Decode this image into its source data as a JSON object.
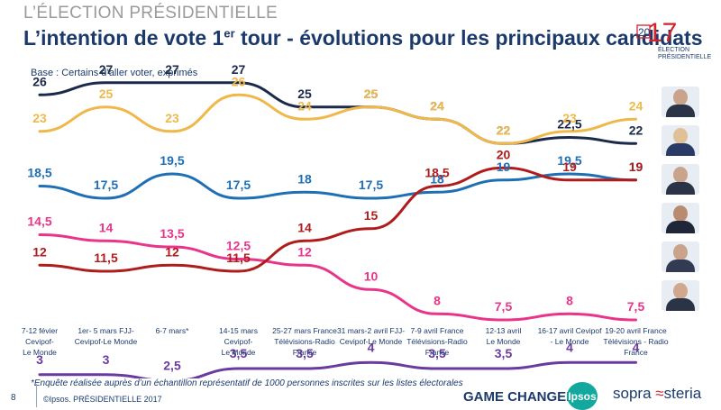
{
  "header": {
    "kicker": "L’ÉLECTION PRÉSIDENTIELLE",
    "title_main": "L’intention de vote 1",
    "title_sup": "er",
    "title_rest": " tour - évolutions pour les principaux candidats",
    "base": "Base : Certains d’aller voter, exprimés"
  },
  "logo": {
    "year_top": "20",
    "year_digits": "17",
    "line1": "ÉLECTION",
    "line2": "PRÉSIDENTIELLE"
  },
  "footer": {
    "note": "*Enquête réalisée auprès d’un échantillon représentatif de 1000 personnes inscrites sur les listes électorales",
    "page": "8",
    "source": "©Ipsos.  PRÉSIDENTIELLE 2017",
    "game_changers": "GAME CHANGERS",
    "ipsos": "Ipsos",
    "sopra_a": "sopra",
    "sopra_b": "steria"
  },
  "chart_data": {
    "type": "line",
    "ylim": [
      0,
      30
    ],
    "categories": [
      "7-12 févier Cevipof-Le Monde",
      "1er- 5 mars FJJ-Cevipof-Le Monde",
      "6-7 mars*",
      "14-15 mars Cevipof-Le Monde",
      "25-27 mars France Télévisions-Radio France",
      "31 mars-2 avril FJJ-Cevipof-Le Monde",
      "7-9 avril France Télévisions-Radio France",
      "12-13 avril Le Monde",
      "16-17 avril Cevipof - Le Monde",
      "19-20 avril France Télévisions - Radio France"
    ],
    "category_lines": [
      [
        "7-12 févier",
        "Cevipof-",
        "Le Monde"
      ],
      [
        "1er- 5 mars FJJ-",
        "Cevipof-Le Monde"
      ],
      [
        "6-7 mars*"
      ],
      [
        "14-15 mars",
        "Cevipof-",
        "Le Monde"
      ],
      [
        "25-27 mars France",
        "Télévisions-Radio",
        "France"
      ],
      [
        "31 mars-2 avril FJJ-",
        "Cevipof-Le Monde"
      ],
      [
        "7-9 avril France",
        "Télévisions-Radio",
        "France"
      ],
      [
        "12-13 avril",
        "Le Monde"
      ],
      [
        "16-17 avril Cevipof",
        "- Le Monde"
      ],
      [
        "19-20 avril France",
        "Télévisions - Radio",
        "France"
      ]
    ],
    "series": [
      {
        "color": "#1b2a4a",
        "values": [
          26,
          27,
          27,
          27,
          25,
          25,
          24,
          22,
          22.5,
          22
        ],
        "labels": [
          "26",
          "27",
          "27",
          "27",
          "25",
          "25",
          "24",
          "22",
          "22,5",
          "22"
        ]
      },
      {
        "color": "#f0b84b",
        "values": [
          23,
          25,
          23,
          26,
          24,
          25,
          24,
          22,
          23,
          24
        ],
        "labels": [
          "23",
          "25",
          "23",
          "26",
          "24",
          "25",
          "24",
          "22",
          "23",
          "24"
        ]
      },
      {
        "color": "#1f6fb5",
        "values": [
          18.5,
          17.5,
          19.5,
          17.5,
          18,
          17.5,
          18,
          19,
          19.5,
          19
        ],
        "labels": [
          "18,5",
          "17,5",
          "19,5",
          "17,5",
          "18",
          "17,5",
          "18",
          "19",
          "19,5",
          "19"
        ]
      },
      {
        "color": "#e8358a",
        "values": [
          14.5,
          14,
          13.5,
          12.5,
          12,
          10,
          8,
          7.5,
          8,
          7.5
        ],
        "labels": [
          "14,5",
          "14",
          "13,5",
          "12,5",
          "12",
          "10",
          "8",
          "7,5",
          "8",
          "7,5"
        ]
      },
      {
        "color": "#b01c1c",
        "values": [
          12,
          11.5,
          12,
          11.5,
          14,
          15,
          18.5,
          20,
          19,
          19
        ],
        "labels": [
          "12",
          "11,5",
          "12",
          "11,5",
          "14",
          "15",
          "18,5",
          "20",
          "19",
          "19"
        ]
      },
      {
        "color": "#6b3aa0",
        "values": [
          3,
          3,
          2.5,
          3.5,
          3.5,
          4,
          3.5,
          3.5,
          4,
          4
        ],
        "labels": [
          "3",
          "3",
          "2,5",
          "3,5",
          "3,5",
          "4",
          "3,5",
          "3,5",
          "4",
          "4"
        ]
      }
    ]
  }
}
